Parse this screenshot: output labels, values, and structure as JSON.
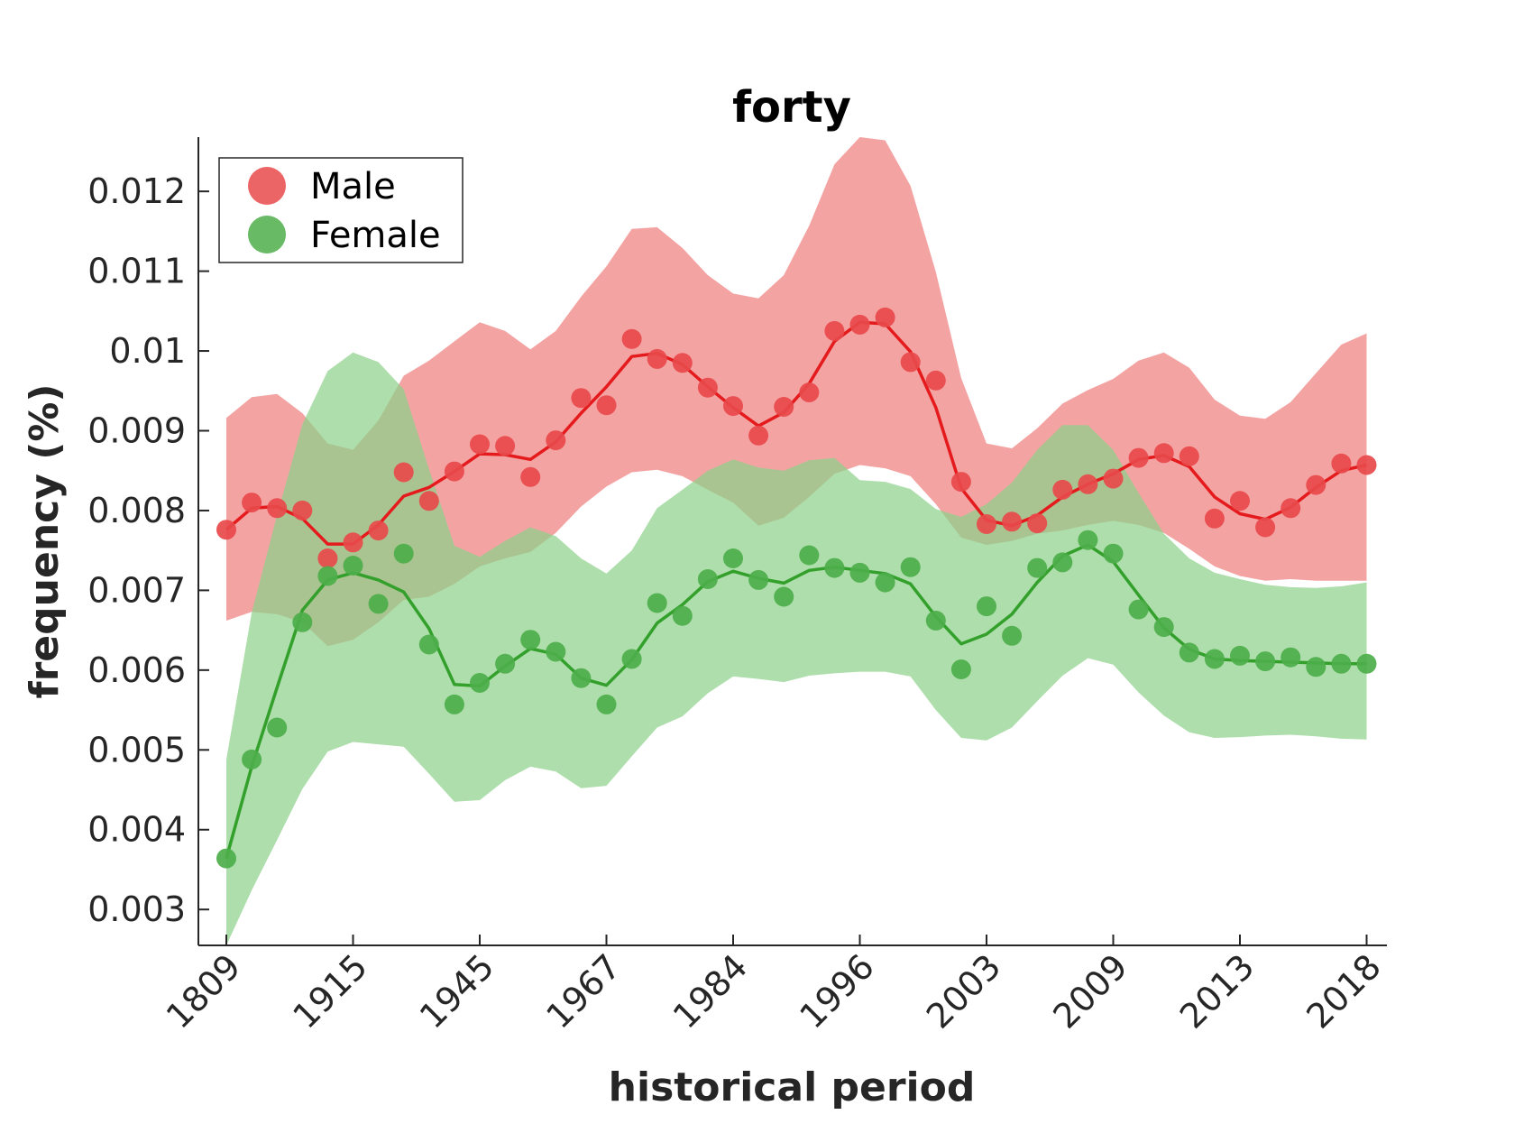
{
  "chart_data": {
    "type": "line",
    "title": "forty",
    "xlabel": "historical period",
    "ylabel": "frequency (%)",
    "x_tick_labels": [
      "1809",
      "1915",
      "1945",
      "1967",
      "1984",
      "1996",
      "2003",
      "2009",
      "2013",
      "2018"
    ],
    "x_tick_indices": [
      0,
      5,
      10,
      15,
      20,
      25,
      30,
      35,
      40,
      45
    ],
    "y_ticks": [
      0.003,
      0.004,
      0.005,
      0.006,
      0.007,
      0.008,
      0.009,
      0.01,
      0.011,
      0.012
    ],
    "y_tick_labels": [
      "0.003",
      "0.004",
      "0.005",
      "0.006",
      "0.007",
      "0.008",
      "0.009",
      "0.01",
      "0.011",
      "0.012"
    ],
    "ylim": [
      0.00255,
      0.01268
    ],
    "legend_position": "top-left",
    "series": [
      {
        "name": "Male",
        "color": "#e41a1c",
        "marker_color": "#e8494b",
        "band_color": "#f08080",
        "points": [
          0.00776,
          0.0081,
          0.00803,
          0.008,
          0.0074,
          0.0076,
          0.00775,
          0.00848,
          0.00812,
          0.00849,
          0.00883,
          0.00881,
          0.00842,
          0.00888,
          0.00941,
          0.00932,
          0.01015,
          0.0099,
          0.00985,
          0.00954,
          0.00931,
          0.00894,
          0.0093,
          0.00948,
          0.01025,
          0.01033,
          0.01042,
          0.00986,
          0.00963,
          0.00836,
          0.00783,
          0.00786,
          0.00784,
          0.00826,
          0.00833,
          0.0084,
          0.00866,
          0.00872,
          0.00868,
          0.0079,
          0.00812,
          0.00779,
          0.00803,
          0.00832,
          0.00859,
          0.00857
        ],
        "smooth": [
          0.00776,
          0.00803,
          0.00805,
          0.0079,
          0.00758,
          0.00758,
          0.00782,
          0.00818,
          0.00829,
          0.00849,
          0.00871,
          0.0087,
          0.00864,
          0.00886,
          0.00922,
          0.00955,
          0.00993,
          0.00997,
          0.00983,
          0.00955,
          0.00929,
          0.00906,
          0.00923,
          0.00959,
          0.01012,
          0.01036,
          0.01034,
          0.00999,
          0.00929,
          0.00828,
          0.00788,
          0.00781,
          0.00794,
          0.00817,
          0.00833,
          0.00846,
          0.00864,
          0.00869,
          0.00855,
          0.00817,
          0.00796,
          0.00789,
          0.00804,
          0.00829,
          0.0085,
          0.00857
        ],
        "band_upper": [
          0.00916,
          0.00942,
          0.00946,
          0.00922,
          0.00884,
          0.00876,
          0.00913,
          0.00969,
          0.00988,
          0.01012,
          0.01036,
          0.01025,
          0.01002,
          0.01025,
          0.01068,
          0.01106,
          0.01153,
          0.01155,
          0.01129,
          0.01095,
          0.01072,
          0.01066,
          0.01095,
          0.01157,
          0.01234,
          0.01268,
          0.01264,
          0.01207,
          0.01099,
          0.00966,
          0.00884,
          0.00878,
          0.00903,
          0.00934,
          0.00951,
          0.00965,
          0.00988,
          0.00998,
          0.00979,
          0.00939,
          0.00919,
          0.00915,
          0.00936,
          0.00972,
          0.01008,
          0.01022
        ],
        "band_lower": [
          0.00662,
          0.00673,
          0.0067,
          0.0066,
          0.0063,
          0.00638,
          0.0066,
          0.00688,
          0.00692,
          0.00708,
          0.0073,
          0.0074,
          0.00748,
          0.00772,
          0.00805,
          0.0083,
          0.00848,
          0.00851,
          0.00843,
          0.00826,
          0.0081,
          0.00781,
          0.00791,
          0.00817,
          0.00846,
          0.00857,
          0.00853,
          0.00843,
          0.00808,
          0.00766,
          0.00757,
          0.00762,
          0.00771,
          0.00775,
          0.00782,
          0.00787,
          0.00782,
          0.00772,
          0.00752,
          0.0073,
          0.00718,
          0.00712,
          0.00714,
          0.00712,
          0.00712,
          0.00712
        ]
      },
      {
        "name": "Female",
        "color": "#33a02c",
        "marker_color": "#4dae4a",
        "band_color": "#8ed18a",
        "points": [
          0.00364,
          0.00488,
          0.00528,
          0.0066,
          0.00718,
          0.00731,
          0.00683,
          0.00746,
          0.00632,
          0.00557,
          0.00584,
          0.00608,
          0.00638,
          0.00623,
          0.0059,
          0.00557,
          0.00614,
          0.00684,
          0.00668,
          0.00714,
          0.0074,
          0.00713,
          0.00692,
          0.00744,
          0.00728,
          0.00722,
          0.0071,
          0.00729,
          0.00662,
          0.00601,
          0.0068,
          0.00643,
          0.00728,
          0.00735,
          0.00763,
          0.00746,
          0.00676,
          0.00654,
          0.00622,
          0.00614,
          0.00618,
          0.00611,
          0.00616,
          0.00604,
          0.00608,
          0.00608
        ],
        "smooth": [
          0.00364,
          0.00479,
          0.00578,
          0.00675,
          0.00713,
          0.00722,
          0.00713,
          0.00698,
          0.00652,
          0.00582,
          0.0058,
          0.00605,
          0.00627,
          0.0062,
          0.0059,
          0.00581,
          0.00613,
          0.00659,
          0.00682,
          0.00711,
          0.00724,
          0.00715,
          0.00709,
          0.00725,
          0.00729,
          0.00725,
          0.00721,
          0.00708,
          0.00667,
          0.00633,
          0.00645,
          0.0067,
          0.0071,
          0.00743,
          0.00757,
          0.00736,
          0.00694,
          0.00653,
          0.00626,
          0.00614,
          0.00612,
          0.00611,
          0.0061,
          0.00609,
          0.00608,
          0.00608
        ],
        "band_upper": [
          0.00488,
          0.00672,
          0.00794,
          0.00908,
          0.00975,
          0.00998,
          0.00986,
          0.00952,
          0.00852,
          0.00756,
          0.00742,
          0.00762,
          0.00779,
          0.00768,
          0.0074,
          0.00721,
          0.0075,
          0.00803,
          0.00826,
          0.0085,
          0.00864,
          0.00854,
          0.0085,
          0.00863,
          0.00866,
          0.00838,
          0.00836,
          0.00827,
          0.00802,
          0.00792,
          0.00808,
          0.00835,
          0.00876,
          0.00907,
          0.00907,
          0.00876,
          0.00822,
          0.00771,
          0.0074,
          0.00722,
          0.00714,
          0.00707,
          0.00704,
          0.00703,
          0.00705,
          0.0071
        ],
        "band_lower": [
          0.00255,
          0.00324,
          0.00387,
          0.00451,
          0.00498,
          0.0051,
          0.00507,
          0.00504,
          0.0047,
          0.00435,
          0.00437,
          0.00462,
          0.00479,
          0.00473,
          0.00452,
          0.00455,
          0.00492,
          0.00528,
          0.00542,
          0.00571,
          0.00592,
          0.00589,
          0.00585,
          0.00593,
          0.00596,
          0.00598,
          0.00598,
          0.00592,
          0.0055,
          0.00515,
          0.00512,
          0.00528,
          0.00561,
          0.00593,
          0.00615,
          0.00607,
          0.00572,
          0.00543,
          0.00522,
          0.00515,
          0.00516,
          0.00518,
          0.00519,
          0.00517,
          0.00514,
          0.00513
        ]
      }
    ]
  }
}
